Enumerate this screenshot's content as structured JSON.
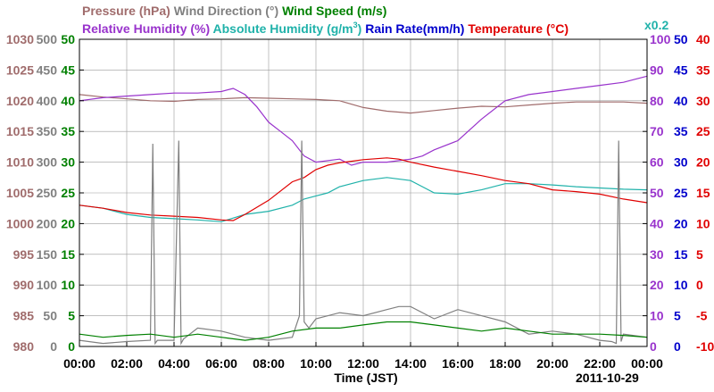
{
  "chart_data": {
    "type": "line",
    "x_axis": {
      "label": "Time (JST)",
      "ticks": [
        "00:00",
        "02:00",
        "04:00",
        "06:00",
        "08:00",
        "10:00",
        "12:00",
        "14:00",
        "16:00",
        "18:00",
        "20:00",
        "22:00",
        "00:00"
      ],
      "date": "2011-10-29",
      "range_hours": [
        0,
        24
      ]
    },
    "y_axes": [
      {
        "id": "pressure",
        "color": "#a06c6c",
        "min": 980,
        "max": 1030,
        "ticks": [
          "980",
          "985",
          "990",
          "995",
          "1000",
          "1005",
          "1010",
          "1015",
          "1020",
          "1025",
          "1030"
        ]
      },
      {
        "id": "wind_dir",
        "color": "#808080",
        "min": 0,
        "max": 500,
        "ticks": [
          "0",
          "50",
          "100",
          "150",
          "200",
          "250",
          "300",
          "350",
          "400",
          "450",
          "500"
        ]
      },
      {
        "id": "wind_speed",
        "color": "#008000",
        "min": 0,
        "max": 50,
        "ticks": [
          "0",
          "5",
          "10",
          "15",
          "20",
          "25",
          "30",
          "35",
          "40",
          "45",
          "50"
        ]
      },
      {
        "id": "humidity",
        "color": "#9933cc",
        "min": 0,
        "max": 100,
        "ticks": [
          "0",
          "10",
          "20",
          "30",
          "40",
          "50",
          "60",
          "70",
          "80",
          "90",
          "100"
        ]
      },
      {
        "id": "abs_humidity_rain",
        "color": "#0000cc",
        "min": 0,
        "max": 50,
        "ticks": [
          "0",
          "5",
          "10",
          "15",
          "20",
          "25",
          "30",
          "35",
          "40",
          "45",
          "50"
        ],
        "multiplier_label": "x0.2",
        "multiplier_color": "#20b2aa"
      },
      {
        "id": "temperature",
        "color": "#e00000",
        "min": -10,
        "max": 40,
        "ticks": [
          "-10",
          "-5",
          "0",
          "5",
          "10",
          "15",
          "20",
          "25",
          "30",
          "35",
          "40"
        ]
      }
    ],
    "legend_row1": [
      {
        "label": "Pressure (hPa)",
        "color": "#a06c6c"
      },
      {
        "label": "Wind Direction (°)",
        "color": "#808080"
      },
      {
        "label": "Wind Speed (m/s)",
        "color": "#008000"
      }
    ],
    "legend_row2": [
      {
        "label": "Relative Humidity (%)",
        "color": "#9933cc"
      },
      {
        "label": "Absolute Humidity (g/m",
        "sup": "3",
        "suffix": ")",
        "color": "#20b2aa"
      },
      {
        "label": "Rain Rate(mm/h)",
        "color": "#0000cc"
      },
      {
        "label": "Temperature (°C)",
        "color": "#e00000"
      }
    ],
    "grid": true,
    "series": [
      {
        "name": "Pressure (hPa)",
        "color": "#a06c6c",
        "axis": "pressure",
        "x": [
          0,
          1,
          2,
          3,
          4,
          5,
          6,
          7,
          8,
          9,
          10,
          11,
          12,
          13,
          14,
          15,
          16,
          17,
          18,
          19,
          20,
          21,
          22,
          23,
          24
        ],
        "y": [
          1021,
          1020.6,
          1020.3,
          1020,
          1019.9,
          1020.2,
          1020.3,
          1020.5,
          1020.4,
          1020.3,
          1020.2,
          1020,
          1018.9,
          1018.3,
          1018,
          1018.4,
          1018.8,
          1019.1,
          1019,
          1019.3,
          1019.6,
          1019.8,
          1019.8,
          1019.8,
          1019.6
        ]
      },
      {
        "name": "Relative Humidity (%)",
        "color": "#9933cc",
        "axis": "humidity",
        "x": [
          0,
          1,
          2,
          3,
          4,
          5,
          6,
          6.5,
          7,
          7.5,
          8,
          8.5,
          9,
          9.5,
          10,
          11,
          11.5,
          12,
          13,
          14,
          14.5,
          15,
          16,
          17,
          18,
          19,
          20,
          21,
          22,
          23,
          23.5,
          24
        ],
        "y": [
          80,
          81,
          81.5,
          82,
          82.5,
          82.5,
          83,
          84,
          82,
          78,
          73,
          70,
          67,
          62,
          60,
          61,
          59,
          60,
          60,
          61,
          62,
          64,
          67,
          74,
          80,
          82,
          83,
          84,
          85,
          86,
          87,
          88
        ]
      },
      {
        "name": "Absolute Humidity (g/m3)",
        "color": "#20b2aa",
        "axis": "abs_humidity_rain",
        "x": [
          0,
          1,
          2,
          3,
          4,
          5,
          6,
          7,
          8,
          9,
          9.5,
          10,
          10.5,
          11,
          12,
          13,
          14,
          14.5,
          15,
          16,
          17,
          18,
          19,
          20,
          21,
          22,
          23,
          24
        ],
        "y": [
          23,
          22.5,
          21.5,
          21,
          20.8,
          20.6,
          20.3,
          21.5,
          22,
          23,
          24,
          24.5,
          25,
          26,
          27,
          27.5,
          27,
          26,
          25,
          24.8,
          25.5,
          26.5,
          26.5,
          26.3,
          26,
          25.8,
          25.6,
          25.5
        ]
      },
      {
        "name": "Temperature (°C)",
        "color": "#e00000",
        "axis": "temperature",
        "x": [
          0,
          1,
          2,
          3,
          4,
          5,
          6,
          6.5,
          7,
          8,
          9,
          9.5,
          10,
          10.5,
          11,
          12,
          13,
          13.5,
          14,
          15,
          16,
          17,
          18,
          19,
          20,
          21,
          22,
          23,
          24
        ],
        "y": [
          13,
          12.5,
          11.8,
          11.4,
          11.2,
          11,
          10.6,
          10.5,
          11.5,
          13.8,
          16.8,
          17.5,
          18.8,
          19.5,
          19.9,
          20.4,
          20.7,
          20.5,
          20,
          19.2,
          18.5,
          17.8,
          17,
          16.5,
          15.5,
          15.2,
          14.8,
          14,
          13.4
        ]
      },
      {
        "name": "Wind Direction (°)",
        "color": "#808080",
        "axis": "wind_dir",
        "x": [
          0,
          1,
          2,
          3,
          3.1,
          3.2,
          3.3,
          4,
          4.2,
          4.3,
          4.4,
          5,
          6,
          7,
          8,
          9,
          9.3,
          9.4,
          9.5,
          9.7,
          10,
          11,
          12,
          13,
          13.5,
          14,
          15,
          16,
          17,
          18,
          19,
          20,
          21,
          22,
          22.5,
          22.7,
          22.8,
          22.9,
          23,
          24
        ],
        "y": [
          10,
          5,
          8,
          10,
          330,
          5,
          10,
          10,
          335,
          5,
          12,
          30,
          25,
          15,
          10,
          15,
          50,
          335,
          40,
          30,
          45,
          55,
          50,
          60,
          65,
          65,
          45,
          60,
          50,
          40,
          20,
          25,
          20,
          10,
          8,
          5,
          335,
          8,
          20,
          15
        ]
      },
      {
        "name": "Wind Speed (m/s)",
        "color": "#008000",
        "axis": "wind_speed",
        "x": [
          0,
          1,
          2,
          3,
          4,
          5,
          6,
          7,
          8,
          9,
          10,
          11,
          12,
          13,
          14,
          15,
          16,
          17,
          18,
          19,
          20,
          21,
          22,
          23,
          24
        ],
        "y": [
          2,
          1.5,
          1.8,
          2,
          1.5,
          2,
          1.5,
          1,
          1.5,
          2.5,
          3,
          3,
          3.5,
          4,
          4,
          3.5,
          3,
          2.5,
          3,
          2.5,
          2,
          2,
          2,
          1.8,
          1.5
        ]
      }
    ]
  }
}
